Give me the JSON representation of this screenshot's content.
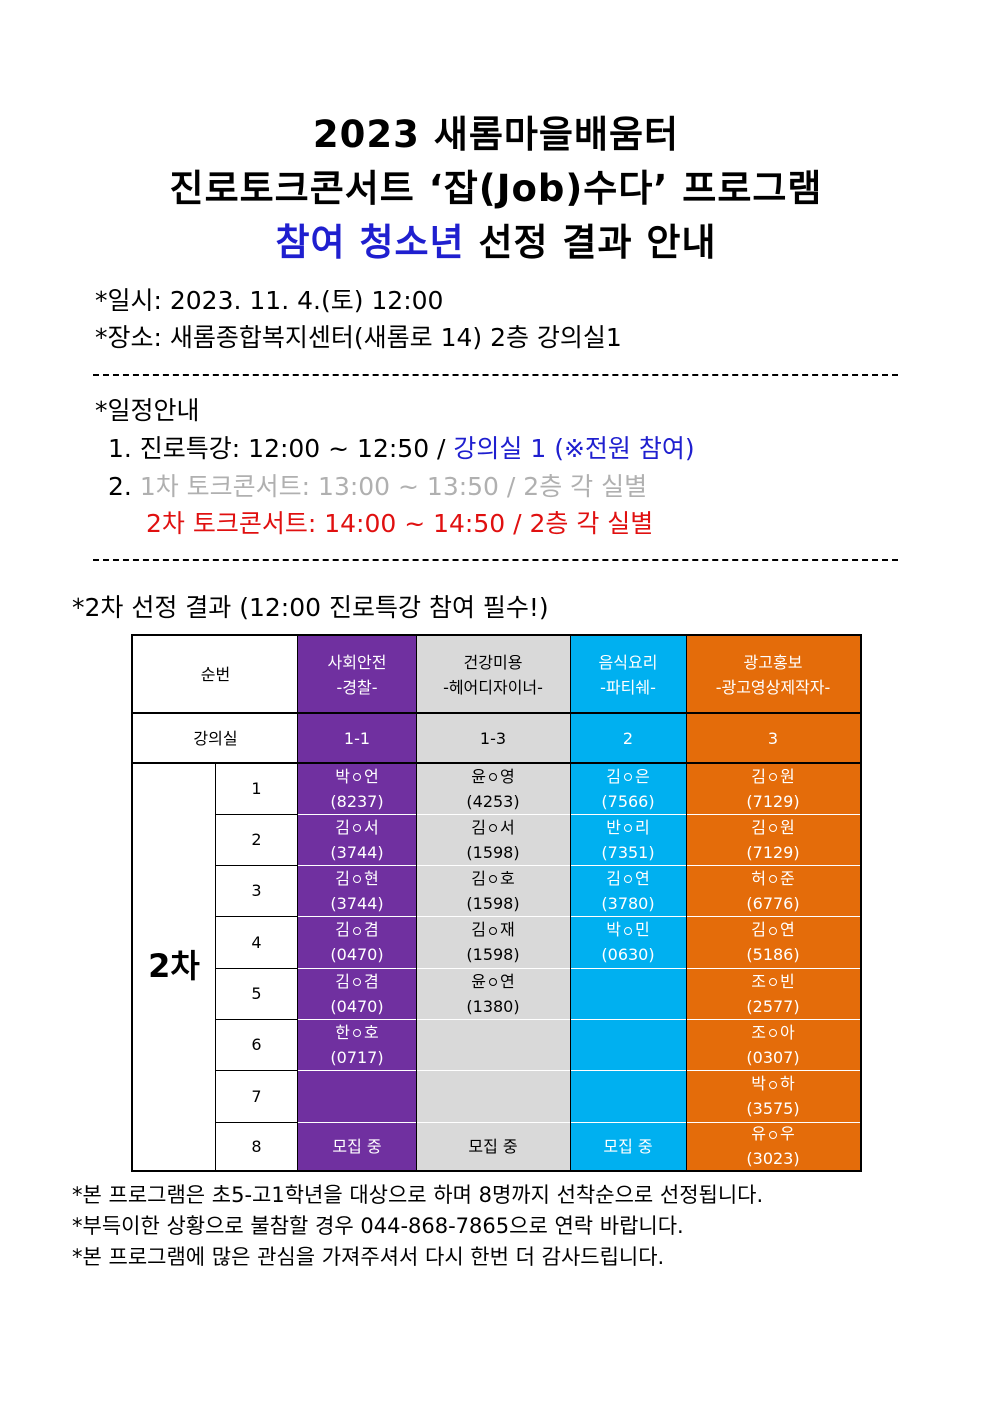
{
  "title": {
    "line1": "2023 새롬마을배움터",
    "line2": "진로토크콘서트 ‘잡(Job)수다’ 프로그램",
    "line3_highlight": "참여 청소년",
    "line3_rest": " 선정 결과 안내"
  },
  "info": {
    "date": "*일시: 2023. 11. 4.(토) 12:00",
    "place": "*장소: 새롬종합복지센터(새롬로 14) 2층 강의실1"
  },
  "schedule": {
    "heading": "*일정안내",
    "item1_main": "1. 진로특강: 12:00 ~ 12:50 / ",
    "item1_highlight": "강의실 1 (※전원 참여)",
    "item2_num": "2. ",
    "item2_first": "1차 토크콘서트: 13:00 ~ 13:50 / 2층 각 실별",
    "item2_second": "2차 토크콘서트: 14:00 ~ 14:50 / 2층 각 실별"
  },
  "section_heading": "*2차 선정 결과 (12:00 진로특강 참여 필수!)",
  "table": {
    "order_label": "순번",
    "room_label": "강의실",
    "round_label": "2차",
    "colors": {
      "purple": "#7030a0",
      "gray": "#d9d9d9",
      "cyan": "#00b0f0",
      "orange": "#e46c0a"
    },
    "columns": [
      {
        "name": "사회안전",
        "sub": "-경찰-",
        "room": "1-1",
        "color": "#7030a0",
        "text_color": "#ffffff"
      },
      {
        "name": "건강미용",
        "sub": "-헤어디자이너-",
        "room": "1-3",
        "color": "#d9d9d9",
        "text_color": "#000000"
      },
      {
        "name": "음식요리",
        "sub": "-파티쉐-",
        "room": "2",
        "color": "#00b0f0",
        "text_color": "#ffffff"
      },
      {
        "name": "광고홍보",
        "sub": "-광고영상제작자-",
        "room": "3",
        "color": "#e46c0a",
        "text_color": "#ffffff"
      }
    ],
    "rows": [
      {
        "num": "1",
        "cells": [
          {
            "name": [
              "박",
              "언"
            ],
            "code": "(8237)"
          },
          {
            "name": [
              "윤",
              "영"
            ],
            "code": "(4253)"
          },
          {
            "name": [
              "김",
              "은"
            ],
            "code": "(7566)"
          },
          {
            "name": [
              "김",
              "원"
            ],
            "code": "(7129)"
          }
        ]
      },
      {
        "num": "2",
        "cells": [
          {
            "name": [
              "김",
              "서"
            ],
            "code": "(3744)"
          },
          {
            "name": [
              "김",
              "서"
            ],
            "code": "(1598)"
          },
          {
            "name": [
              "반",
              "리"
            ],
            "code": "(7351)"
          },
          {
            "name": [
              "김",
              "원"
            ],
            "code": "(7129)"
          }
        ]
      },
      {
        "num": "3",
        "cells": [
          {
            "name": [
              "김",
              "현"
            ],
            "code": "(3744)"
          },
          {
            "name": [
              "김",
              "호"
            ],
            "code": "(1598)"
          },
          {
            "name": [
              "김",
              "연"
            ],
            "code": "(3780)"
          },
          {
            "name": [
              "허",
              "준"
            ],
            "code": "(6776)"
          }
        ]
      },
      {
        "num": "4",
        "cells": [
          {
            "name": [
              "김",
              "겸"
            ],
            "code": "(0470)"
          },
          {
            "name": [
              "김",
              "재"
            ],
            "code": "(1598)"
          },
          {
            "name": [
              "박",
              "민"
            ],
            "code": "(0630)"
          },
          {
            "name": [
              "김",
              "연"
            ],
            "code": "(5186)"
          }
        ]
      },
      {
        "num": "5",
        "cells": [
          {
            "name": [
              "김",
              "겸"
            ],
            "code": "(0470)"
          },
          {
            "name": [
              "윤",
              "연"
            ],
            "code": "(1380)"
          },
          null,
          {
            "name": [
              "조",
              "빈"
            ],
            "code": "(2577)"
          }
        ]
      },
      {
        "num": "6",
        "cells": [
          {
            "name": [
              "한",
              "호"
            ],
            "code": "(0717)"
          },
          null,
          null,
          {
            "name": [
              "조",
              "아"
            ],
            "code": "(0307)"
          }
        ]
      },
      {
        "num": "7",
        "cells": [
          null,
          null,
          null,
          {
            "name": [
              "박",
              "하"
            ],
            "code": "(3575)"
          }
        ]
      },
      {
        "num": "8",
        "cells": [
          {
            "text": "모집 중"
          },
          {
            "text": "모집 중"
          },
          {
            "text": "모집 중"
          },
          {
            "name": [
              "유",
              "우"
            ],
            "code": "(3023)"
          }
        ]
      }
    ]
  },
  "footnotes": [
    "*본 프로그램은 초5-고1학년을 대상으로 하며 8명까지 선착순으로 선정됩니다.",
    "*부득이한 상황으로 불참할 경우 044-868-7865으로 연락 바랍니다.",
    "*본 프로그램에 많은 관심을 가져주셔서 다시 한번 더 감사드립니다."
  ]
}
